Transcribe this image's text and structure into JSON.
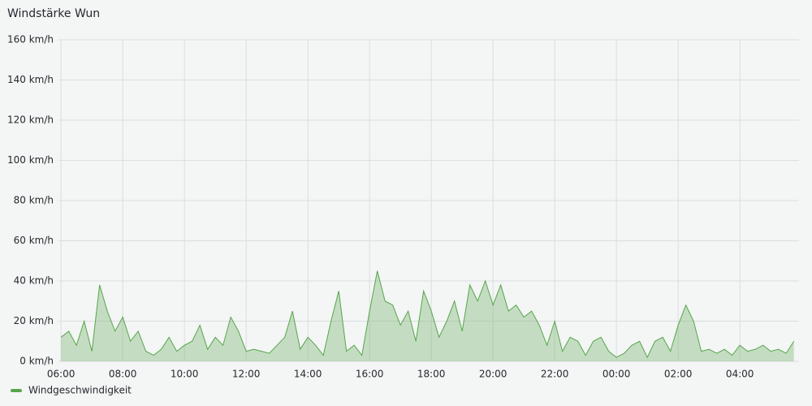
{
  "chart_data": {
    "type": "area",
    "title": "Windstärke Wun",
    "x": [
      "06:00",
      "06:15",
      "06:30",
      "06:45",
      "07:00",
      "07:15",
      "07:30",
      "07:45",
      "08:00",
      "08:15",
      "08:30",
      "08:45",
      "09:00",
      "09:15",
      "09:30",
      "09:45",
      "10:00",
      "10:15",
      "10:30",
      "10:45",
      "11:00",
      "11:15",
      "11:30",
      "11:45",
      "12:00",
      "12:15",
      "12:30",
      "12:45",
      "13:00",
      "13:15",
      "13:30",
      "13:45",
      "14:00",
      "14:15",
      "14:30",
      "14:45",
      "15:00",
      "15:15",
      "15:30",
      "15:45",
      "16:00",
      "16:15",
      "16:30",
      "16:45",
      "17:00",
      "17:15",
      "17:30",
      "17:45",
      "18:00",
      "18:15",
      "18:30",
      "18:45",
      "19:00",
      "19:15",
      "19:30",
      "19:45",
      "20:00",
      "20:15",
      "20:30",
      "20:45",
      "21:00",
      "21:15",
      "21:30",
      "21:45",
      "22:00",
      "22:15",
      "22:30",
      "22:45",
      "23:00",
      "23:15",
      "23:30",
      "23:45",
      "00:00",
      "00:15",
      "00:30",
      "00:45",
      "01:00",
      "01:15",
      "01:30",
      "01:45",
      "02:00",
      "02:15",
      "02:30",
      "02:45",
      "03:00",
      "03:15",
      "03:30",
      "03:45",
      "04:00",
      "04:15",
      "04:30",
      "04:45",
      "05:00",
      "05:15",
      "05:30",
      "05:45"
    ],
    "series": [
      {
        "name": "Windgeschwindigkeit",
        "color": "#56a64b",
        "values": [
          12,
          15,
          8,
          20,
          5,
          38,
          25,
          15,
          22,
          10,
          15,
          5,
          3,
          6,
          12,
          5,
          8,
          10,
          18,
          6,
          12,
          8,
          22,
          15,
          5,
          6,
          5,
          4,
          8,
          12,
          25,
          6,
          12,
          8,
          3,
          20,
          35,
          5,
          8,
          3,
          25,
          45,
          30,
          28,
          18,
          25,
          10,
          35,
          25,
          12,
          20,
          30,
          15,
          38,
          30,
          40,
          28,
          38,
          25,
          28,
          22,
          25,
          18,
          8,
          20,
          5,
          12,
          10,
          3,
          10,
          12,
          5,
          2,
          4,
          8,
          10,
          2,
          10,
          12,
          5,
          18,
          28,
          20,
          5,
          6,
          4,
          6,
          3,
          8,
          5,
          6,
          8,
          5,
          6,
          4,
          10
        ]
      }
    ],
    "xlim": [
      "05:55",
      "05:55"
    ],
    "xticks": [
      "06:00",
      "08:00",
      "10:00",
      "12:00",
      "14:00",
      "16:00",
      "18:00",
      "20:00",
      "22:00",
      "00:00",
      "02:00",
      "04:00"
    ],
    "ylim": [
      0,
      160
    ],
    "yticks": [
      {
        "value": 0,
        "label": "0 km/h"
      },
      {
        "value": 20,
        "label": "20 km/h"
      },
      {
        "value": 40,
        "label": "40 km/h"
      },
      {
        "value": 60,
        "label": "60 km/h"
      },
      {
        "value": 80,
        "label": "80 km/h"
      },
      {
        "value": 100,
        "label": "100 km/h"
      },
      {
        "value": 120,
        "label": "120 km/h"
      },
      {
        "value": 140,
        "label": "140 km/h"
      },
      {
        "value": 160,
        "label": "160 km/h"
      }
    ],
    "grid": true,
    "legend": "bottom-left"
  }
}
